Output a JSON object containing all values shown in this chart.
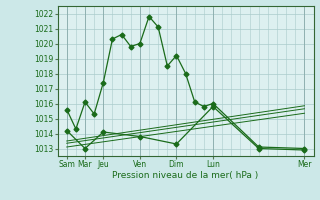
{
  "background_color": "#cce8e8",
  "plot_bg": "#ddf0f0",
  "grid_color": "#aacccc",
  "line_color": "#1a6b1a",
  "xlabel": "Pression niveau de la mer( hPa )",
  "ylim": [
    1012.5,
    1022.5
  ],
  "yticks": [
    1013,
    1014,
    1015,
    1016,
    1017,
    1018,
    1019,
    1020,
    1021,
    1022
  ],
  "xlim": [
    0,
    14
  ],
  "day_positions": [
    0.5,
    1.5,
    2.5,
    4.5,
    6.5,
    8.5,
    13.5
  ],
  "day_labels": [
    "Sam",
    "Mar",
    "Jeu",
    "Ven",
    "Dim",
    "Lun",
    "Mer"
  ],
  "vline_positions": [
    0.5,
    1.5,
    2.5,
    4.5,
    6.5,
    8.5,
    13.5
  ],
  "line1_x": [
    0.5,
    1.0,
    1.5,
    2.0,
    2.5,
    3.0,
    3.5,
    4.0,
    4.5,
    5.0,
    5.5,
    6.0,
    6.5,
    7.0,
    7.5,
    8.0,
    8.5,
    11.0,
    13.5
  ],
  "line1_y": [
    1015.6,
    1014.3,
    1016.1,
    1015.3,
    1017.4,
    1020.3,
    1020.6,
    1019.8,
    1020.0,
    1021.8,
    1021.1,
    1018.5,
    1019.2,
    1018.0,
    1016.1,
    1015.8,
    1016.0,
    1013.1,
    1013.0
  ],
  "line2_x": [
    0.5,
    1.5,
    2.5,
    4.5,
    6.5,
    8.5,
    11.0,
    13.5
  ],
  "line2_y": [
    1014.2,
    1013.0,
    1014.1,
    1013.8,
    1013.3,
    1015.8,
    1013.0,
    1012.9
  ],
  "line3_x": [
    0.5,
    13.5
  ],
  "line3_y": [
    1013.5,
    1015.85
  ],
  "line4_x": [
    0.5,
    13.5
  ],
  "line4_y": [
    1013.35,
    1015.65
  ],
  "line5_x": [
    0.5,
    13.5
  ],
  "line5_y": [
    1013.1,
    1015.35
  ]
}
